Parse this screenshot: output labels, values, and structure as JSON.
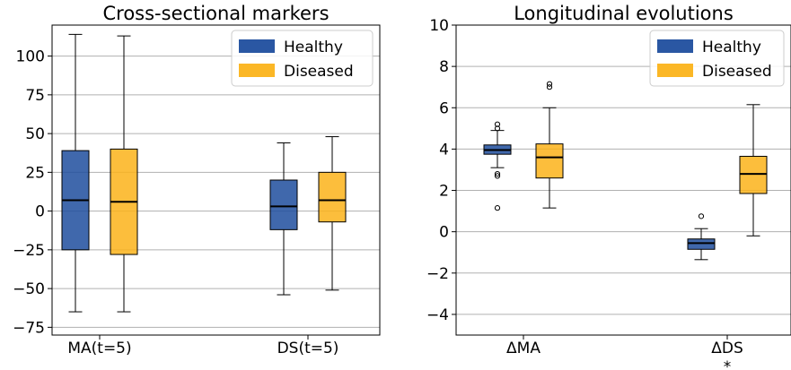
{
  "chart_data": [
    {
      "type": "box",
      "title": "Cross-sectional markers",
      "categories": [
        "MA(t=5)",
        "DS(t=5)"
      ],
      "ylim": [
        -80,
        120
      ],
      "yticks": [
        -75,
        -50,
        -25,
        0,
        25,
        50,
        75,
        100
      ],
      "ytick_labels": [
        "−75",
        "−50",
        "−25",
        "0",
        "25",
        "50",
        "75",
        "100"
      ],
      "grid": "horizontal",
      "legend": "top-right",
      "series": [
        {
          "name": "Healthy",
          "color": "#1f4e9e",
          "boxes": [
            {
              "whisker_low": -65,
              "q1": -25,
              "median": 7,
              "q3": 39,
              "whisker_high": 114,
              "outliers": []
            },
            {
              "whisker_low": -54,
              "q1": -12,
              "median": 3,
              "q3": 20,
              "whisker_high": 44,
              "outliers": []
            }
          ]
        },
        {
          "name": "Diseased",
          "color": "#fbb31a",
          "boxes": [
            {
              "whisker_low": -65,
              "q1": -28,
              "median": 6,
              "q3": 40,
              "whisker_high": 113,
              "outliers": []
            },
            {
              "whisker_low": -51,
              "q1": -7,
              "median": 7,
              "q3": 25,
              "whisker_high": 48,
              "outliers": []
            }
          ]
        }
      ]
    },
    {
      "type": "box",
      "title": "Longitudinal evolutions",
      "categories": [
        "ΔMA",
        "ΔDS"
      ],
      "category_annotations": [
        "",
        "*"
      ],
      "ylim": [
        -5,
        10
      ],
      "yticks": [
        -4,
        -2,
        0,
        2,
        4,
        6,
        8,
        10
      ],
      "ytick_labels": [
        "−4",
        "−2",
        "0",
        "2",
        "4",
        "6",
        "8",
        "10"
      ],
      "grid": "horizontal",
      "legend": "top-right",
      "series": [
        {
          "name": "Healthy",
          "color": "#1f4e9e",
          "boxes": [
            {
              "whisker_low": 3.1,
              "q1": 3.75,
              "median": 3.95,
              "q3": 4.2,
              "whisker_high": 4.9,
              "outliers": [
                5.0,
                5.2,
                2.8,
                2.7,
                1.15
              ]
            },
            {
              "whisker_low": -1.35,
              "q1": -0.85,
              "median": -0.55,
              "q3": -0.35,
              "whisker_high": 0.15,
              "outliers": [
                0.75
              ]
            }
          ]
        },
        {
          "name": "Diseased",
          "color": "#fbb31a",
          "boxes": [
            {
              "whisker_low": 1.15,
              "q1": 2.6,
              "median": 3.6,
              "q3": 4.25,
              "whisker_high": 6.0,
              "outliers": [
                7.0,
                7.15
              ]
            },
            {
              "whisker_low": -0.2,
              "q1": 1.85,
              "median": 2.8,
              "q3": 3.65,
              "whisker_high": 6.15,
              "outliers": []
            }
          ]
        }
      ]
    }
  ]
}
